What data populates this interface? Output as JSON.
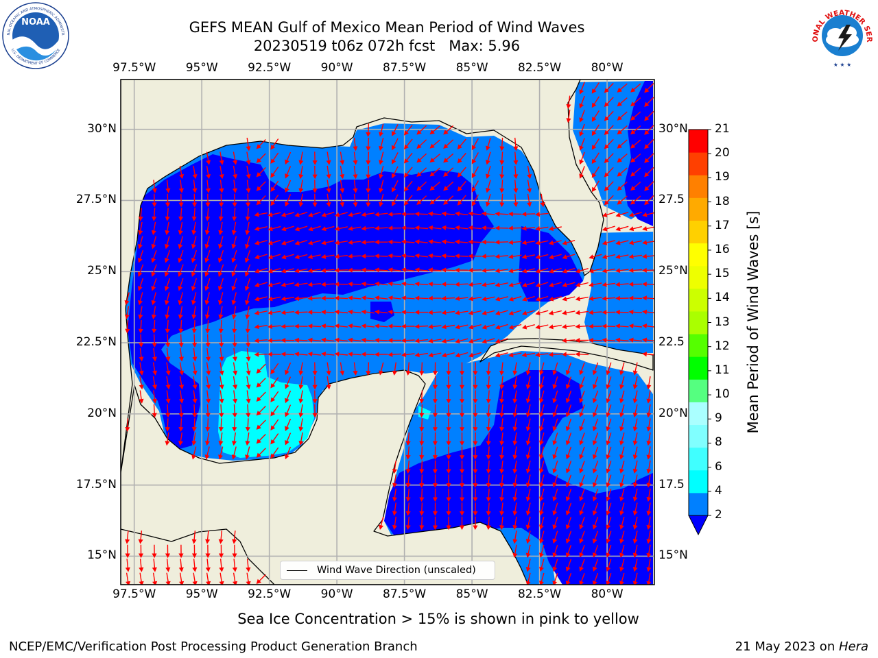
{
  "header": {
    "title_line1": "GEFS MEAN Gulf of Mexico Mean Period of Wind Waves",
    "title_line2": "20230519 t06z 072h fcst   Max: 5.96"
  },
  "logos": {
    "noaa": {
      "icon": "noaa-logo",
      "center_text": "NOAA",
      "ring_text_top": "NATIONAL OCEANIC AND ATMOSPHERIC ADMINISTRATION",
      "ring_text_bottom": "U.S. DEPARTMENT OF COMMERCE"
    },
    "nws": {
      "icon": "nws-logo",
      "ring_text": "NATIONAL WEATHER SERVICE"
    }
  },
  "map": {
    "lon_ticks": [
      "97.5°W",
      "95°W",
      "92.5°W",
      "90°W",
      "87.5°W",
      "85°W",
      "82.5°W",
      "80°W"
    ],
    "lat_ticks_left": [
      "30°N",
      "27.5°N",
      "25°N",
      "22.5°N",
      "20°N",
      "17.5°N",
      "15°N"
    ],
    "lat_ticks_right": [
      "30°N",
      "27.5",
      "25°N",
      "22.5",
      "20°N",
      "17.5",
      "15°N"
    ],
    "extent": {
      "lon": [
        -98.0,
        -78.25
      ],
      "lat": [
        14.0,
        31.75
      ]
    },
    "colors": {
      "land": "#efeedc",
      "deep_blue": "#0000ff",
      "mid_blue": "#0080ff",
      "cyan": "#00ffff",
      "arrow": "#ff0000",
      "grid": "#b0b0b0",
      "coast": "#000000"
    },
    "legend_label": "Wind Wave Direction (unscaled)"
  },
  "colorbar": {
    "label": "Mean Period of Wind Waves [s]",
    "ticks": [
      "21",
      "20",
      "19",
      "18",
      "17",
      "16",
      "15",
      "14",
      "13",
      "12",
      "11",
      "10",
      "9",
      "8",
      "6",
      "4",
      "2"
    ],
    "colors_bottom_to_top": [
      "#0080ff",
      "#00ffff",
      "#40ffff",
      "#80ffff",
      "#aaffff",
      "#55ff80",
      "#00ff00",
      "#55ff00",
      "#aaff00",
      "#ccff00",
      "#eeff00",
      "#ffff00",
      "#ffd000",
      "#ffaa00",
      "#ff8000",
      "#ff4000",
      "#ff0000"
    ],
    "underflow_color": "#0000ff"
  },
  "footer": {
    "note": "Sea Ice Concentration > 15% is shown in pink to yellow",
    "left": "NCEP/EMC/Verification Post Processing Product Generation Branch",
    "right_date": "21 May 2023 on ",
    "right_host": "Hera"
  }
}
